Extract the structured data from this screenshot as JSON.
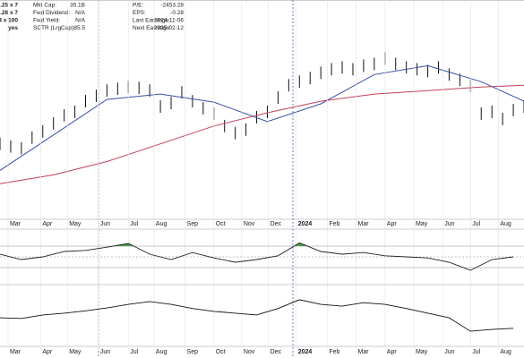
{
  "info": [
    [
      ".25 x 7",
      "Mkt Cap:",
      "35.1B",
      "P/E:",
      "-2453.28"
    ],
    [
      ".28 x 7",
      "Fwd Dividend:",
      "N/A",
      "EPS:",
      "-0.28"
    ],
    [
      "4 x 100",
      "Fwd Yield:",
      "N/A",
      "Last Earnings:",
      "2024-11-06"
    ],
    [
      "yes",
      "SCTR (LrgCap):",
      "85.5",
      "Next Earnings:",
      "2025-02-12"
    ]
  ],
  "chart_data": [
    {
      "type": "ohlc",
      "ylim": [
        0,
        240
      ],
      "high": [
        87,
        84,
        82,
        94,
        101,
        110,
        119,
        123,
        135,
        141,
        147,
        149,
        151,
        150,
        147,
        129,
        133,
        145,
        135,
        127,
        121,
        107,
        99,
        103,
        117,
        123,
        139,
        153,
        157,
        161,
        167,
        171,
        173,
        171,
        175,
        177,
        183,
        177,
        173,
        171,
        169,
        173,
        165,
        159,
        152,
        121,
        123,
        115,
        125,
        129
      ],
      "low": [
        73,
        70,
        68,
        80,
        87,
        96,
        105,
        109,
        121,
        127,
        133,
        135,
        137,
        136,
        133,
        115,
        119,
        131,
        121,
        113,
        107,
        93,
        85,
        89,
        103,
        109,
        125,
        139,
        143,
        147,
        153,
        157,
        159,
        157,
        161,
        163,
        169,
        163,
        159,
        157,
        155,
        159,
        151,
        145,
        138,
        107,
        109,
        101,
        111,
        115
      ],
      "xticks": [
        {
          "value": 0.75,
          "label": "Mar"
        },
        {
          "value": 3.8,
          "label": "Apr"
        },
        {
          "value": 6.3,
          "label": "May"
        },
        {
          "value": 9.2,
          "label": "Jun"
        },
        {
          "value": 12,
          "label": "Jul"
        },
        {
          "value": 14.4,
          "label": "Aug"
        },
        {
          "value": 17.3,
          "label": "Sep"
        },
        {
          "value": 20,
          "label": "Oct"
        },
        {
          "value": 22.6,
          "label": "Nov"
        },
        {
          "value": 25.1,
          "label": "Dec"
        },
        {
          "value": 27.7,
          "label": "2024"
        },
        {
          "value": 30.6,
          "label": "Feb"
        },
        {
          "value": 33.3,
          "label": "Mar"
        },
        {
          "value": 36,
          "label": "Apr"
        },
        {
          "value": 38.7,
          "label": "May"
        },
        {
          "value": 41.4,
          "label": "Jun"
        },
        {
          "value": 44,
          "label": "Jul"
        },
        {
          "value": 46.6,
          "label": "Aug"
        }
      ],
      "series": [
        {
          "color": "#3a4fa8",
          "x": [
            0,
            5,
            10,
            15,
            20,
            25,
            30,
            35,
            40,
            45,
            49
          ],
          "values": [
            50,
            90,
            130,
            136,
            127,
            105,
            125,
            158,
            168,
            150,
            128
          ]
        },
        {
          "color": "#c0405a",
          "x": [
            0,
            5,
            10,
            15,
            20,
            25,
            30,
            35,
            40,
            45,
            49
          ],
          "values": [
            35,
            45,
            60,
            80,
            100,
            115,
            128,
            136,
            140,
            144,
            146
          ]
        }
      ]
    },
    {
      "type": "line",
      "ylim": [
        0,
        100
      ],
      "yticks": [
        30,
        50,
        70
      ],
      "threshold": 70,
      "fill_color": "#4f9a4f",
      "color": "#222",
      "x": [
        0,
        2,
        4,
        6,
        8,
        10,
        12,
        14,
        16,
        18,
        20,
        22,
        24,
        26,
        28,
        30,
        32,
        34,
        36,
        38,
        40,
        42,
        44,
        46,
        48
      ],
      "values": [
        55,
        45,
        50,
        60,
        62,
        68,
        75,
        55,
        45,
        58,
        48,
        40,
        45,
        52,
        76,
        60,
        55,
        58,
        52,
        50,
        48,
        40,
        25,
        45,
        50
      ]
    },
    {
      "type": "line",
      "ylim": [
        0,
        100
      ],
      "color": "#111",
      "x": [
        0,
        2,
        4,
        6,
        8,
        10,
        12,
        14,
        16,
        18,
        20,
        22,
        24,
        26,
        28,
        30,
        32,
        34,
        36,
        38,
        40,
        42,
        44,
        46,
        48
      ],
      "values": [
        46,
        45,
        51,
        54,
        58,
        63,
        69,
        74,
        69,
        62,
        57,
        54,
        51,
        62,
        77,
        69,
        66,
        72,
        69,
        62,
        54,
        46,
        23,
        26,
        28
      ]
    }
  ]
}
